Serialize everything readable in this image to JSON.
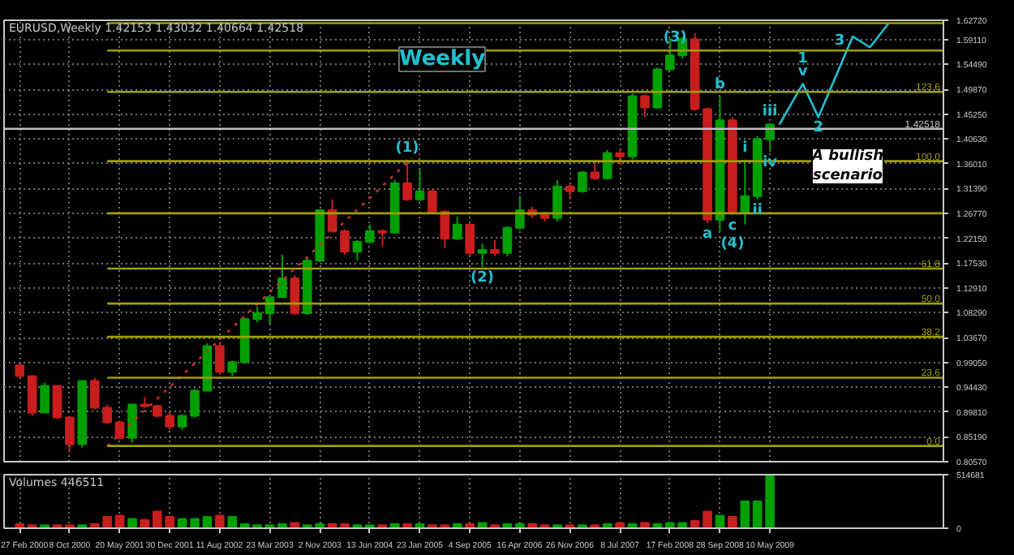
{
  "chart_data": [
    {
      "type": "candlestick",
      "title": "EURUSD,Weekly  1.42153 1.43032 1.40664 1.42518",
      "annotations": [
        "Weekly",
        "A bullish scenario",
        {
          "text": "(1)",
          "x": "2004-11-28",
          "y": 1.368
        },
        {
          "text": "(2)",
          "x": "2005-10-30",
          "y": 1.168
        },
        {
          "text": "(3)",
          "x": "2008-06-08",
          "y": 1.603
        },
        {
          "text": "a",
          "x": "2008-08-03",
          "y": 1.25
        },
        {
          "text": "b",
          "x": "2008-09-28",
          "y": 1.486
        },
        {
          "text": "c",
          "x": "2008-11-23",
          "y": 1.265
        },
        {
          "text": "(4)",
          "x": "2008-11-23",
          "y": 1.265
        },
        {
          "text": "i",
          "x": "2009-01-18",
          "y": 1.368
        },
        {
          "text": "ii",
          "x": "2009-03-15",
          "y": 1.294
        },
        {
          "text": "iii",
          "x": "2009-05-10",
          "y": 1.436
        },
        {
          "text": "iv",
          "x": "2009-05-10",
          "y": 1.383
        },
        {
          "text": "v",
          "x": "2009-10-04",
          "y": 1.509
        },
        {
          "text": "1",
          "x": "2009-10-04",
          "y": 1.509
        },
        {
          "text": "2",
          "x": "2009-12-13",
          "y": 1.447
        },
        {
          "text": "3",
          "x": "2010-05-16",
          "y": 1.597
        },
        {
          "text": "123.6",
          "x": "2011-06-26",
          "y": 1.494
        },
        {
          "text": "100.0",
          "x": "2011-06-26",
          "y": 1.365
        },
        {
          "text": "61.8",
          "x": "2011-06-26",
          "y": 1.165
        },
        {
          "text": "50.0",
          "x": "2011-06-26",
          "y": 1.1
        },
        {
          "text": "38.2",
          "x": "2011-06-26",
          "y": 1.038
        },
        {
          "text": "23.6",
          "x": "2011-06-26",
          "y": 0.962
        },
        {
          "text": "0.0",
          "x": "2011-06-26",
          "y": 0.835
        },
        {
          "text": "1.42518",
          "x": "2011-06-26",
          "y": 1.42518
        }
      ],
      "x": [
        "2000-02-27",
        "2000-04-23",
        "2000-06-18",
        "2000-08-13",
        "2000-10-08",
        "2000-12-03",
        "2001-01-28",
        "2001-03-25",
        "2001-05-20",
        "2001-07-15",
        "2001-09-09",
        "2001-11-04",
        "2001-12-30",
        "2002-02-24",
        "2002-04-21",
        "2002-06-16",
        "2002-08-11",
        "2002-10-06",
        "2002-12-01",
        "2003-01-26",
        "2003-03-23",
        "2003-05-18",
        "2003-07-13",
        "2003-09-07",
        "2003-11-02",
        "2003-12-28",
        "2004-02-22",
        "2004-04-18",
        "2004-06-13",
        "2004-08-08",
        "2004-10-03",
        "2004-11-28",
        "2005-01-23",
        "2005-03-20",
        "2005-05-15",
        "2005-07-10",
        "2005-09-04",
        "2005-10-30",
        "2005-12-25",
        "2006-02-19",
        "2006-04-16",
        "2006-06-11",
        "2006-08-06",
        "2006-10-01",
        "2006-11-26",
        "2007-01-21",
        "2007-03-18",
        "2007-05-13",
        "2007-07-08",
        "2007-09-02",
        "2007-10-28",
        "2007-12-23",
        "2008-02-17",
        "2008-04-13",
        "2008-06-08",
        "2008-08-03",
        "2008-09-28",
        "2008-11-23",
        "2009-01-18",
        "2009-03-15",
        "2009-05-10"
      ],
      "ohlc": [
        [
          0.985,
          0.985,
          0.962,
          0.965
        ],
        [
          0.965,
          0.965,
          0.891,
          0.897
        ],
        [
          0.897,
          0.953,
          0.897,
          0.947
        ],
        [
          0.947,
          0.947,
          0.885,
          0.888
        ],
        [
          0.888,
          0.888,
          0.826,
          0.838
        ],
        [
          0.838,
          0.956,
          0.832,
          0.956
        ],
        [
          0.956,
          0.962,
          0.903,
          0.906
        ],
        [
          0.906,
          0.912,
          0.876,
          0.879
        ],
        [
          0.879,
          0.882,
          0.847,
          0.85
        ],
        [
          0.85,
          0.912,
          0.841,
          0.912
        ],
        [
          0.912,
          0.926,
          0.906,
          0.909
        ],
        [
          0.909,
          0.912,
          0.888,
          0.891
        ],
        [
          0.891,
          0.897,
          0.865,
          0.871
        ],
        [
          0.871,
          0.894,
          0.865,
          0.891
        ],
        [
          0.891,
          0.941,
          0.888,
          0.938
        ],
        [
          0.938,
          1.026,
          0.938,
          1.021
        ],
        [
          1.021,
          1.029,
          0.968,
          0.973
        ],
        [
          0.973,
          0.994,
          0.965,
          0.991
        ],
        [
          0.991,
          1.074,
          0.988,
          1.071
        ],
        [
          1.071,
          1.094,
          1.065,
          1.082
        ],
        [
          1.082,
          1.112,
          1.062,
          1.112
        ],
        [
          1.112,
          1.191,
          1.112,
          1.147
        ],
        [
          1.147,
          1.153,
          1.079,
          1.082
        ],
        [
          1.082,
          1.185,
          1.079,
          1.18
        ],
        [
          1.18,
          1.274,
          1.177,
          1.274
        ],
        [
          1.274,
          1.294,
          1.232,
          1.235
        ],
        [
          1.235,
          1.238,
          1.191,
          1.197
        ],
        [
          1.197,
          1.218,
          1.18,
          1.215
        ],
        [
          1.215,
          1.247,
          1.212,
          1.235
        ],
        [
          1.235,
          1.238,
          1.206,
          1.232
        ],
        [
          1.232,
          1.33,
          1.23,
          1.324
        ],
        [
          1.324,
          1.368,
          1.291,
          1.294
        ],
        [
          1.294,
          1.35,
          1.291,
          1.309
        ],
        [
          1.309,
          1.312,
          1.268,
          1.271
        ],
        [
          1.271,
          1.274,
          1.203,
          1.221
        ],
        [
          1.221,
          1.262,
          1.218,
          1.247
        ],
        [
          1.247,
          1.25,
          1.188,
          1.194
        ],
        [
          1.194,
          1.212,
          1.168,
          1.2
        ],
        [
          1.2,
          1.218,
          1.188,
          1.194
        ],
        [
          1.194,
          1.244,
          1.188,
          1.241
        ],
        [
          1.241,
          1.3,
          1.238,
          1.274
        ],
        [
          1.274,
          1.28,
          1.259,
          1.265
        ],
        [
          1.265,
          1.271,
          1.253,
          1.259
        ],
        [
          1.259,
          1.33,
          1.253,
          1.318
        ],
        [
          1.318,
          1.324,
          1.294,
          1.309
        ],
        [
          1.309,
          1.347,
          1.306,
          1.344
        ],
        [
          1.344,
          1.368,
          1.33,
          1.333
        ],
        [
          1.333,
          1.386,
          1.33,
          1.38
        ],
        [
          1.38,
          1.388,
          1.359,
          1.374
        ],
        [
          1.374,
          1.491,
          1.368,
          1.486
        ],
        [
          1.486,
          1.489,
          1.447,
          1.465
        ],
        [
          1.465,
          1.539,
          1.462,
          1.536
        ],
        [
          1.536,
          1.594,
          1.533,
          1.562
        ],
        [
          1.562,
          1.597,
          1.556,
          1.592
        ],
        [
          1.592,
          1.603,
          1.459,
          1.462
        ],
        [
          1.462,
          1.465,
          1.25,
          1.256
        ],
        [
          1.256,
          1.486,
          1.235,
          1.441
        ],
        [
          1.441,
          1.447,
          1.265,
          1.271
        ],
        [
          1.271,
          1.368,
          1.247,
          1.3
        ],
        [
          1.3,
          1.412,
          1.294,
          1.406
        ],
        [
          1.406,
          1.436,
          1.383,
          1.433
        ]
      ],
      "colors": [
        "#c81e1e",
        "#c81e1e",
        "#00a000",
        "#c81e1e",
        "#c81e1e",
        "#00a000",
        "#c81e1e",
        "#c81e1e",
        "#c81e1e",
        "#00a000",
        "#c81e1e",
        "#c81e1e",
        "#c81e1e",
        "#00a000",
        "#00a000",
        "#00a000",
        "#c81e1e",
        "#00a000",
        "#00a000",
        "#00a000",
        "#00a000",
        "#00a000",
        "#c81e1e",
        "#00a000",
        "#00a000",
        "#c81e1e",
        "#c81e1e",
        "#00a000",
        "#00a000",
        "#c81e1e",
        "#00a000",
        "#c81e1e",
        "#00a000",
        "#c81e1e",
        "#c81e1e",
        "#00a000",
        "#c81e1e",
        "#00a000",
        "#c81e1e",
        "#00a000",
        "#00a000",
        "#c81e1e",
        "#c81e1e",
        "#00a000",
        "#c81e1e",
        "#00a000",
        "#c81e1e",
        "#00a000",
        "#c81e1e",
        "#00a000",
        "#c81e1e",
        "#00a000",
        "#00a000",
        "#00a000",
        "#c81e1e",
        "#c81e1e",
        "#00a000",
        "#c81e1e",
        "#00a000",
        "#00a000",
        "#00a000"
      ],
      "series": [
        {
          "type": "line",
          "x": [
            "2001-03-25",
            "2004-12-19"
          ],
          "values": [
            0.835,
            1.371
          ],
          "color": "#c03030",
          "line_style": "dotted"
        },
        {
          "type": "line",
          "x": [
            "2009-06-21",
            "2009-10-04",
            "2009-12-13",
            "2010-05-16",
            "2010-08-01",
            "2010-10-24"
          ],
          "values": [
            1.433,
            1.509,
            1.447,
            1.597,
            1.577,
            1.622
          ],
          "color": "#20c0d0",
          "line_style": "solid"
        },
        {
          "type": "line",
          "x": [
            "2001-03-25",
            "2011-06-26"
          ],
          "values": [
            1.622,
            1.622
          ],
          "color": "#a0a000",
          "line_style": "solid"
        },
        {
          "type": "line",
          "x": [
            "2001-03-25",
            "2011-06-26"
          ],
          "values": [
            1.571,
            1.571
          ],
          "color": "#a0a000",
          "line_style": "solid"
        },
        {
          "type": "line",
          "x": [
            "2001-03-25",
            "2011-06-26"
          ],
          "values": [
            1.494,
            1.494
          ],
          "color": "#a0a000",
          "line_style": "solid"
        },
        {
          "type": "line",
          "x": [
            "2001-03-25",
            "2011-06-26"
          ],
          "values": [
            1.365,
            1.365
          ],
          "color": "#a0a000",
          "line_style": "solid"
        },
        {
          "type": "line",
          "x": [
            "2001-03-25",
            "2011-06-26"
          ],
          "values": [
            1.268,
            1.268
          ],
          "color": "#a0a000",
          "line_style": "solid"
        },
        {
          "type": "line",
          "x": [
            "2001-03-25",
            "2011-06-26"
          ],
          "values": [
            1.165,
            1.165
          ],
          "color": "#a0a000",
          "line_style": "solid"
        },
        {
          "type": "line",
          "x": [
            "2001-03-25",
            "2011-06-26"
          ],
          "values": [
            1.1,
            1.1
          ],
          "color": "#a0a000",
          "line_style": "solid"
        },
        {
          "type": "line",
          "x": [
            "2001-03-25",
            "2011-06-26"
          ],
          "values": [
            1.038,
            1.038
          ],
          "color": "#a0a000",
          "line_style": "solid"
        },
        {
          "type": "line",
          "x": [
            "2001-03-25",
            "2011-06-26"
          ],
          "values": [
            0.962,
            0.962
          ],
          "color": "#a0a000",
          "line_style": "solid"
        },
        {
          "type": "line",
          "x": [
            "2001-03-25",
            "2011-06-26"
          ],
          "values": [
            0.835,
            0.835
          ],
          "color": "#a0a000",
          "line_style": "solid"
        },
        {
          "type": "line",
          "x": [
            "1999-12-19",
            "2011-06-26"
          ],
          "values": [
            1.42518,
            1.42518
          ],
          "color": "#c0c0c0",
          "line_style": "solid"
        }
      ],
      "xlim": [
        "1999-12-19",
        "2011-06-26"
      ],
      "ylim": [
        0.8057,
        1.6272
      ],
      "xticks": [
        {
          "value": "2000-02-27",
          "label": null
        },
        {
          "value": "2000-10-08",
          "label": null
        },
        {
          "value": "2001-05-20",
          "label": null
        },
        {
          "value": "2001-12-30",
          "label": null
        },
        {
          "value": "2002-08-11",
          "label": null
        },
        {
          "value": "2003-03-23",
          "label": null
        },
        {
          "value": "2003-11-02",
          "label": null
        },
        {
          "value": "2004-06-13",
          "label": null
        },
        {
          "value": "2005-01-23",
          "label": null
        },
        {
          "value": "2005-09-04",
          "label": null
        },
        {
          "value": "2006-04-16",
          "label": null
        },
        {
          "value": "2006-11-26",
          "label": null
        },
        {
          "value": "2007-07-08",
          "label": null
        },
        {
          "value": "2008-02-17",
          "label": null
        },
        {
          "value": "2008-09-28",
          "label": null
        },
        {
          "value": "2009-05-10",
          "label": null
        }
      ],
      "yticks": [
        {
          "value": 0.8057,
          "label": "0.80570"
        },
        {
          "value": 0.8519,
          "label": "0.85190"
        },
        {
          "value": 0.8981,
          "label": "0.89810"
        },
        {
          "value": 0.9443,
          "label": "0.94430"
        },
        {
          "value": 0.9905,
          "label": "0.99050"
        },
        {
          "value": 1.0367,
          "label": "1.03670"
        },
        {
          "value": 1.0829,
          "label": "1.08290"
        },
        {
          "value": 1.1291,
          "label": "1.12910"
        },
        {
          "value": 1.1753,
          "label": "1.17530"
        },
        {
          "value": 1.2215,
          "label": "1.22150"
        },
        {
          "value": 1.2677,
          "label": "1.26770"
        },
        {
          "value": 1.3139,
          "label": "1.31390"
        },
        {
          "value": 1.3601,
          "label": "1.36010"
        },
        {
          "value": 1.4063,
          "label": "1.40630"
        },
        {
          "value": 1.4525,
          "label": "1.45250"
        },
        {
          "value": 1.4987,
          "label": "1.49870"
        },
        {
          "value": 1.5449,
          "label": "1.54490"
        },
        {
          "value": 1.5911,
          "label": "1.59110"
        },
        {
          "value": 1.6272,
          "label": "1.62720"
        }
      ],
      "grid": true,
      "tick_labels": "y"
    },
    {
      "type": "bar",
      "title": "Volumes 446511",
      "x": [
        "2000-02-27",
        "2000-04-23",
        "2000-06-18",
        "2000-08-13",
        "2000-10-08",
        "2000-12-03",
        "2001-01-28",
        "2001-03-25",
        "2001-05-20",
        "2001-07-15",
        "2001-09-09",
        "2001-11-04",
        "2001-12-30",
        "2002-02-24",
        "2002-04-21",
        "2002-06-16",
        "2002-08-11",
        "2002-10-06",
        "2002-12-01",
        "2003-01-26",
        "2003-03-23",
        "2003-05-18",
        "2003-07-13",
        "2003-09-07",
        "2003-11-02",
        "2003-12-28",
        "2004-02-22",
        "2004-04-18",
        "2004-06-13",
        "2004-08-08",
        "2004-10-03",
        "2004-11-28",
        "2005-01-23",
        "2005-03-20",
        "2005-05-15",
        "2005-07-10",
        "2005-09-04",
        "2005-10-30",
        "2005-12-25",
        "2006-02-19",
        "2006-04-16",
        "2006-06-11",
        "2006-08-06",
        "2006-10-01",
        "2006-11-26",
        "2007-01-21",
        "2007-03-18",
        "2007-05-13",
        "2007-07-08",
        "2007-09-02",
        "2007-10-28",
        "2007-12-23",
        "2008-02-17",
        "2008-04-13",
        "2008-06-08",
        "2008-08-03",
        "2008-09-28",
        "2008-11-23",
        "2009-01-18",
        "2009-03-15",
        "2009-05-10"
      ],
      "values": [
        40000,
        30000,
        30000,
        30000,
        30000,
        30000,
        40000,
        110000,
        120000,
        90000,
        80000,
        160000,
        110000,
        90000,
        90000,
        110000,
        120000,
        110000,
        40000,
        30000,
        30000,
        40000,
        50000,
        30000,
        40000,
        40000,
        40000,
        30000,
        30000,
        30000,
        40000,
        40000,
        40000,
        30000,
        30000,
        40000,
        40000,
        50000,
        30000,
        40000,
        40000,
        40000,
        30000,
        30000,
        30000,
        30000,
        30000,
        40000,
        50000,
        40000,
        50000,
        40000,
        50000,
        50000,
        70000,
        160000,
        120000,
        110000,
        260000,
        260000,
        500000
      ],
      "colors": [
        "#c81e1e",
        "#c81e1e",
        "#00a000",
        "#c81e1e",
        "#c81e1e",
        "#00a000",
        "#c81e1e",
        "#c81e1e",
        "#c81e1e",
        "#00a000",
        "#c81e1e",
        "#c81e1e",
        "#c81e1e",
        "#00a000",
        "#00a000",
        "#00a000",
        "#c81e1e",
        "#00a000",
        "#00a000",
        "#00a000",
        "#00a000",
        "#00a000",
        "#c81e1e",
        "#00a000",
        "#00a000",
        "#c81e1e",
        "#c81e1e",
        "#00a000",
        "#00a000",
        "#c81e1e",
        "#00a000",
        "#c81e1e",
        "#00a000",
        "#c81e1e",
        "#c81e1e",
        "#00a000",
        "#c81e1e",
        "#00a000",
        "#c81e1e",
        "#00a000",
        "#00a000",
        "#c81e1e",
        "#c81e1e",
        "#00a000",
        "#c81e1e",
        "#00a000",
        "#c81e1e",
        "#00a000",
        "#c81e1e",
        "#00a000",
        "#c81e1e",
        "#00a000",
        "#00a000",
        "#00a000",
        "#c81e1e",
        "#c81e1e",
        "#00a000",
        "#c81e1e",
        "#00a000",
        "#00a000",
        "#00a000"
      ],
      "xlim": [
        "1999-12-19",
        "2011-06-26"
      ],
      "ylim": [
        0,
        514681
      ],
      "yticks": [
        0,
        514681
      ],
      "xticks": [
        {
          "value": "2000-02-27",
          "label": "27 Feb 2000"
        },
        {
          "value": "2000-10-08",
          "label": "8 Oct 2000"
        },
        {
          "value": "2001-05-20",
          "label": "20 May 2001"
        },
        {
          "value": "2001-12-30",
          "label": "30 Dec 2001"
        },
        {
          "value": "2002-08-11",
          "label": "11 Aug 2002"
        },
        {
          "value": "2003-03-23",
          "label": "23 Mar 2003"
        },
        {
          "value": "2003-11-02",
          "label": "2 Nov 2003"
        },
        {
          "value": "2004-06-13",
          "label": "13 Jun 2004"
        },
        {
          "value": "2005-01-23",
          "label": "23 Jan 2005"
        },
        {
          "value": "2005-09-04",
          "label": "4 Sep 2005"
        },
        {
          "value": "2006-04-16",
          "label": "16 Apr 2006"
        },
        {
          "value": "2006-11-26",
          "label": "26 Nov 2006"
        },
        {
          "value": "2007-07-08",
          "label": "8 Jul 2007"
        },
        {
          "value": "2008-02-17",
          "label": "17 Feb 2008"
        },
        {
          "value": "2008-09-28",
          "label": "28 Sep 2008"
        },
        {
          "value": "2009-05-10",
          "label": "10 May 2009"
        }
      ],
      "grid": true
    }
  ]
}
